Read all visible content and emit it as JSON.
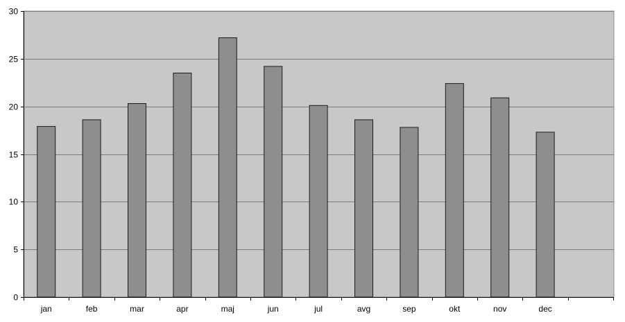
{
  "chart_data": {
    "type": "bar",
    "title": "",
    "xlabel": "",
    "ylabel": "",
    "categories": [
      "jan",
      "feb",
      "mar",
      "apr",
      "maj",
      "jun",
      "jul",
      "avg",
      "sep",
      "okt",
      "nov",
      "dec"
    ],
    "values": [
      17.9,
      18.6,
      20.3,
      23.5,
      27.2,
      24.2,
      20.1,
      18.6,
      17.8,
      22.4,
      20.9,
      17.3
    ],
    "ylim": [
      0,
      30
    ],
    "yticks": [
      0,
      5,
      10,
      15,
      20,
      25,
      30
    ],
    "grid": true,
    "legend": "none",
    "colors": {
      "plot_background": "#c8c8c8",
      "bar_fill": "#8e8e8e",
      "bar_stroke": "#1a1a1a",
      "gridline": "#7a7a7a",
      "axis": "#000000"
    }
  }
}
